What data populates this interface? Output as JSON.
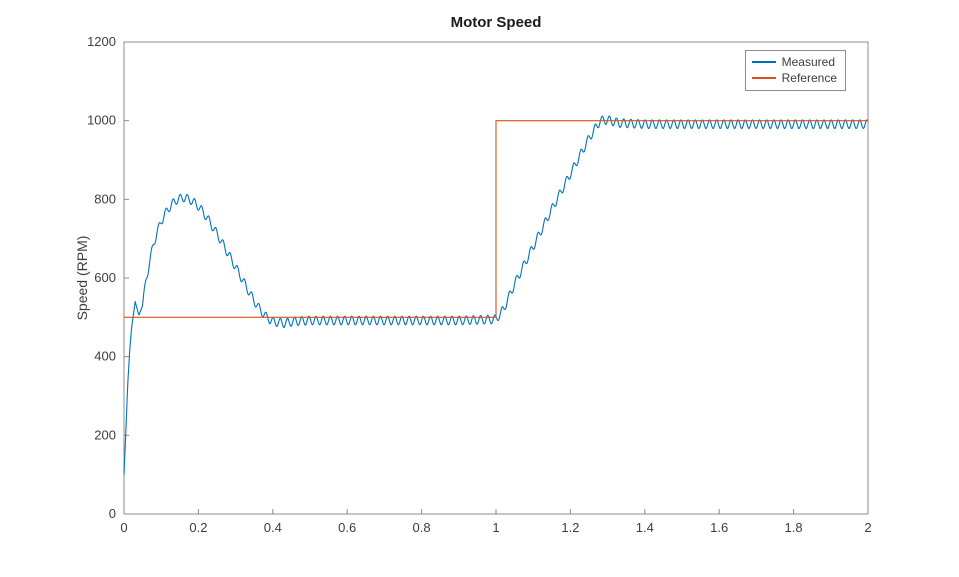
{
  "figure": {
    "title": "Motor Speed",
    "ylabel": "Speed (RPM)",
    "background": "#ffffff",
    "axes_line_color": "#8c8c8c",
    "text_color": "#3d3d3d"
  },
  "chart_data": {
    "type": "line",
    "title": "Motor Speed",
    "xlabel": "",
    "ylabel": "Speed (RPM)",
    "xlim": [
      0,
      2
    ],
    "ylim": [
      0,
      1200
    ],
    "xticks": [
      0,
      0.2,
      0.4,
      0.6,
      0.8,
      1,
      1.2,
      1.4,
      1.6,
      1.8,
      2
    ],
    "yticks": [
      0,
      200,
      400,
      600,
      800,
      1000,
      1200
    ],
    "grid": false,
    "legend_position": "northeast",
    "series": [
      {
        "name": "Measured",
        "color": "#0072BD",
        "style": "mean_plus_ripple",
        "mean_curve": [
          [
            0,
            100
          ],
          [
            0.005,
            210
          ],
          [
            0.01,
            330
          ],
          [
            0.015,
            410
          ],
          [
            0.02,
            470
          ],
          [
            0.03,
            540
          ],
          [
            0.04,
            505
          ],
          [
            0.05,
            530
          ],
          [
            0.06,
            600
          ],
          [
            0.08,
            690
          ],
          [
            0.1,
            745
          ],
          [
            0.12,
            778
          ],
          [
            0.14,
            798
          ],
          [
            0.16,
            805
          ],
          [
            0.18,
            798
          ],
          [
            0.2,
            783
          ],
          [
            0.22,
            758
          ],
          [
            0.24,
            728
          ],
          [
            0.26,
            696
          ],
          [
            0.28,
            662
          ],
          [
            0.3,
            628
          ],
          [
            0.32,
            593
          ],
          [
            0.34,
            558
          ],
          [
            0.36,
            527
          ],
          [
            0.38,
            503
          ],
          [
            0.4,
            489
          ],
          [
            0.43,
            485
          ],
          [
            0.46,
            490
          ],
          [
            0.5,
            492
          ],
          [
            0.6,
            492
          ],
          [
            0.7,
            492
          ],
          [
            0.8,
            492
          ],
          [
            0.9,
            492
          ],
          [
            1.0,
            495
          ],
          [
            1.02,
            520
          ],
          [
            1.05,
            585
          ],
          [
            1.1,
            680
          ],
          [
            1.15,
            775
          ],
          [
            1.2,
            865
          ],
          [
            1.25,
            955
          ],
          [
            1.28,
            1000
          ],
          [
            1.3,
            1002
          ],
          [
            1.33,
            994
          ],
          [
            1.4,
            991
          ],
          [
            1.6,
            991
          ],
          [
            1.8,
            991
          ],
          [
            2.0,
            991
          ]
        ],
        "ripple": {
          "amplitude": 11,
          "cycles_per_unit": 52,
          "start_x": 0.05
        }
      },
      {
        "name": "Reference",
        "color": "#D95319",
        "style": "points",
        "points": [
          [
            0,
            500
          ],
          [
            1,
            500
          ],
          [
            1,
            1000
          ],
          [
            2,
            1000
          ]
        ]
      }
    ]
  },
  "legend": {
    "entries": [
      "Measured",
      "Reference"
    ]
  }
}
